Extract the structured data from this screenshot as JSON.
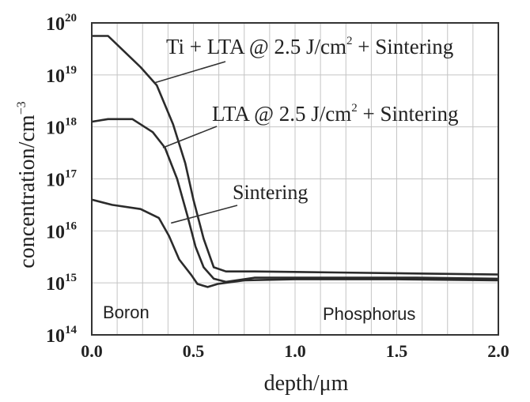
{
  "chart_data": {
    "type": "line",
    "title": "",
    "xlabel": "depth/μm",
    "ylabel_base": "concentration/cm",
    "ylabel_exp": "−3",
    "xlim": [
      0,
      2.0
    ],
    "ylim_exp": [
      14,
      20
    ],
    "y_scale": "log",
    "grid": true,
    "x_ticks": [
      "0.0",
      "0.5",
      "1.0",
      "1.5",
      "2.0"
    ],
    "y_ticks": [
      {
        "base": "10",
        "exp": "20"
      },
      {
        "base": "10",
        "exp": "19"
      },
      {
        "base": "10",
        "exp": "18"
      },
      {
        "base": "10",
        "exp": "17"
      },
      {
        "base": "10",
        "exp": "16"
      },
      {
        "base": "10",
        "exp": "15"
      },
      {
        "base": "10",
        "exp": "14"
      }
    ],
    "region_labels": [
      "Boron",
      "Phosphorus"
    ],
    "series": [
      {
        "name": "Ti + LTA @ 2.5 J/cm² + Sintering",
        "annotation": {
          "pre": "Ti + LTA @ 2.5 J/cm",
          "sup": "2",
          "post": " + Sintering"
        },
        "points": [
          [
            0.0,
            19.75
          ],
          [
            0.08,
            19.75
          ],
          [
            0.16,
            19.45
          ],
          [
            0.24,
            19.15
          ],
          [
            0.32,
            18.8
          ],
          [
            0.4,
            18.05
          ],
          [
            0.46,
            17.3
          ],
          [
            0.5,
            16.6
          ],
          [
            0.55,
            15.85
          ],
          [
            0.6,
            15.3
          ],
          [
            0.66,
            15.22
          ],
          [
            0.8,
            15.22
          ],
          [
            1.2,
            15.2
          ],
          [
            1.6,
            15.18
          ],
          [
            2.0,
            15.16
          ]
        ],
        "label_anchor": [
          0.31,
          18.85
        ]
      },
      {
        "name": "LTA @ 2.5 J/cm² + Sintering",
        "annotation": {
          "pre": "LTA @ 2.5 J/cm",
          "sup": "2",
          "post": " + Sintering"
        },
        "points": [
          [
            0.0,
            18.1
          ],
          [
            0.08,
            18.15
          ],
          [
            0.2,
            18.15
          ],
          [
            0.3,
            17.9
          ],
          [
            0.36,
            17.6
          ],
          [
            0.42,
            17.0
          ],
          [
            0.47,
            16.3
          ],
          [
            0.51,
            15.7
          ],
          [
            0.55,
            15.3
          ],
          [
            0.6,
            15.08
          ],
          [
            0.66,
            15.02
          ],
          [
            0.8,
            15.1
          ],
          [
            1.2,
            15.1
          ],
          [
            1.6,
            15.1
          ],
          [
            2.0,
            15.08
          ]
        ],
        "label_anchor": [
          0.35,
          17.6
        ]
      },
      {
        "name": "Sintering",
        "annotation": {
          "pre": "Sintering",
          "sup": "",
          "post": ""
        },
        "points": [
          [
            0.0,
            16.6
          ],
          [
            0.1,
            16.5
          ],
          [
            0.24,
            16.42
          ],
          [
            0.33,
            16.25
          ],
          [
            0.38,
            15.9
          ],
          [
            0.43,
            15.45
          ],
          [
            0.49,
            15.15
          ],
          [
            0.52,
            14.98
          ],
          [
            0.57,
            14.92
          ],
          [
            0.62,
            14.98
          ],
          [
            0.75,
            15.05
          ],
          [
            1.0,
            15.07
          ],
          [
            1.5,
            15.07
          ],
          [
            2.0,
            15.05
          ]
        ],
        "label_anchor": [
          0.39,
          16.15
        ]
      }
    ]
  }
}
